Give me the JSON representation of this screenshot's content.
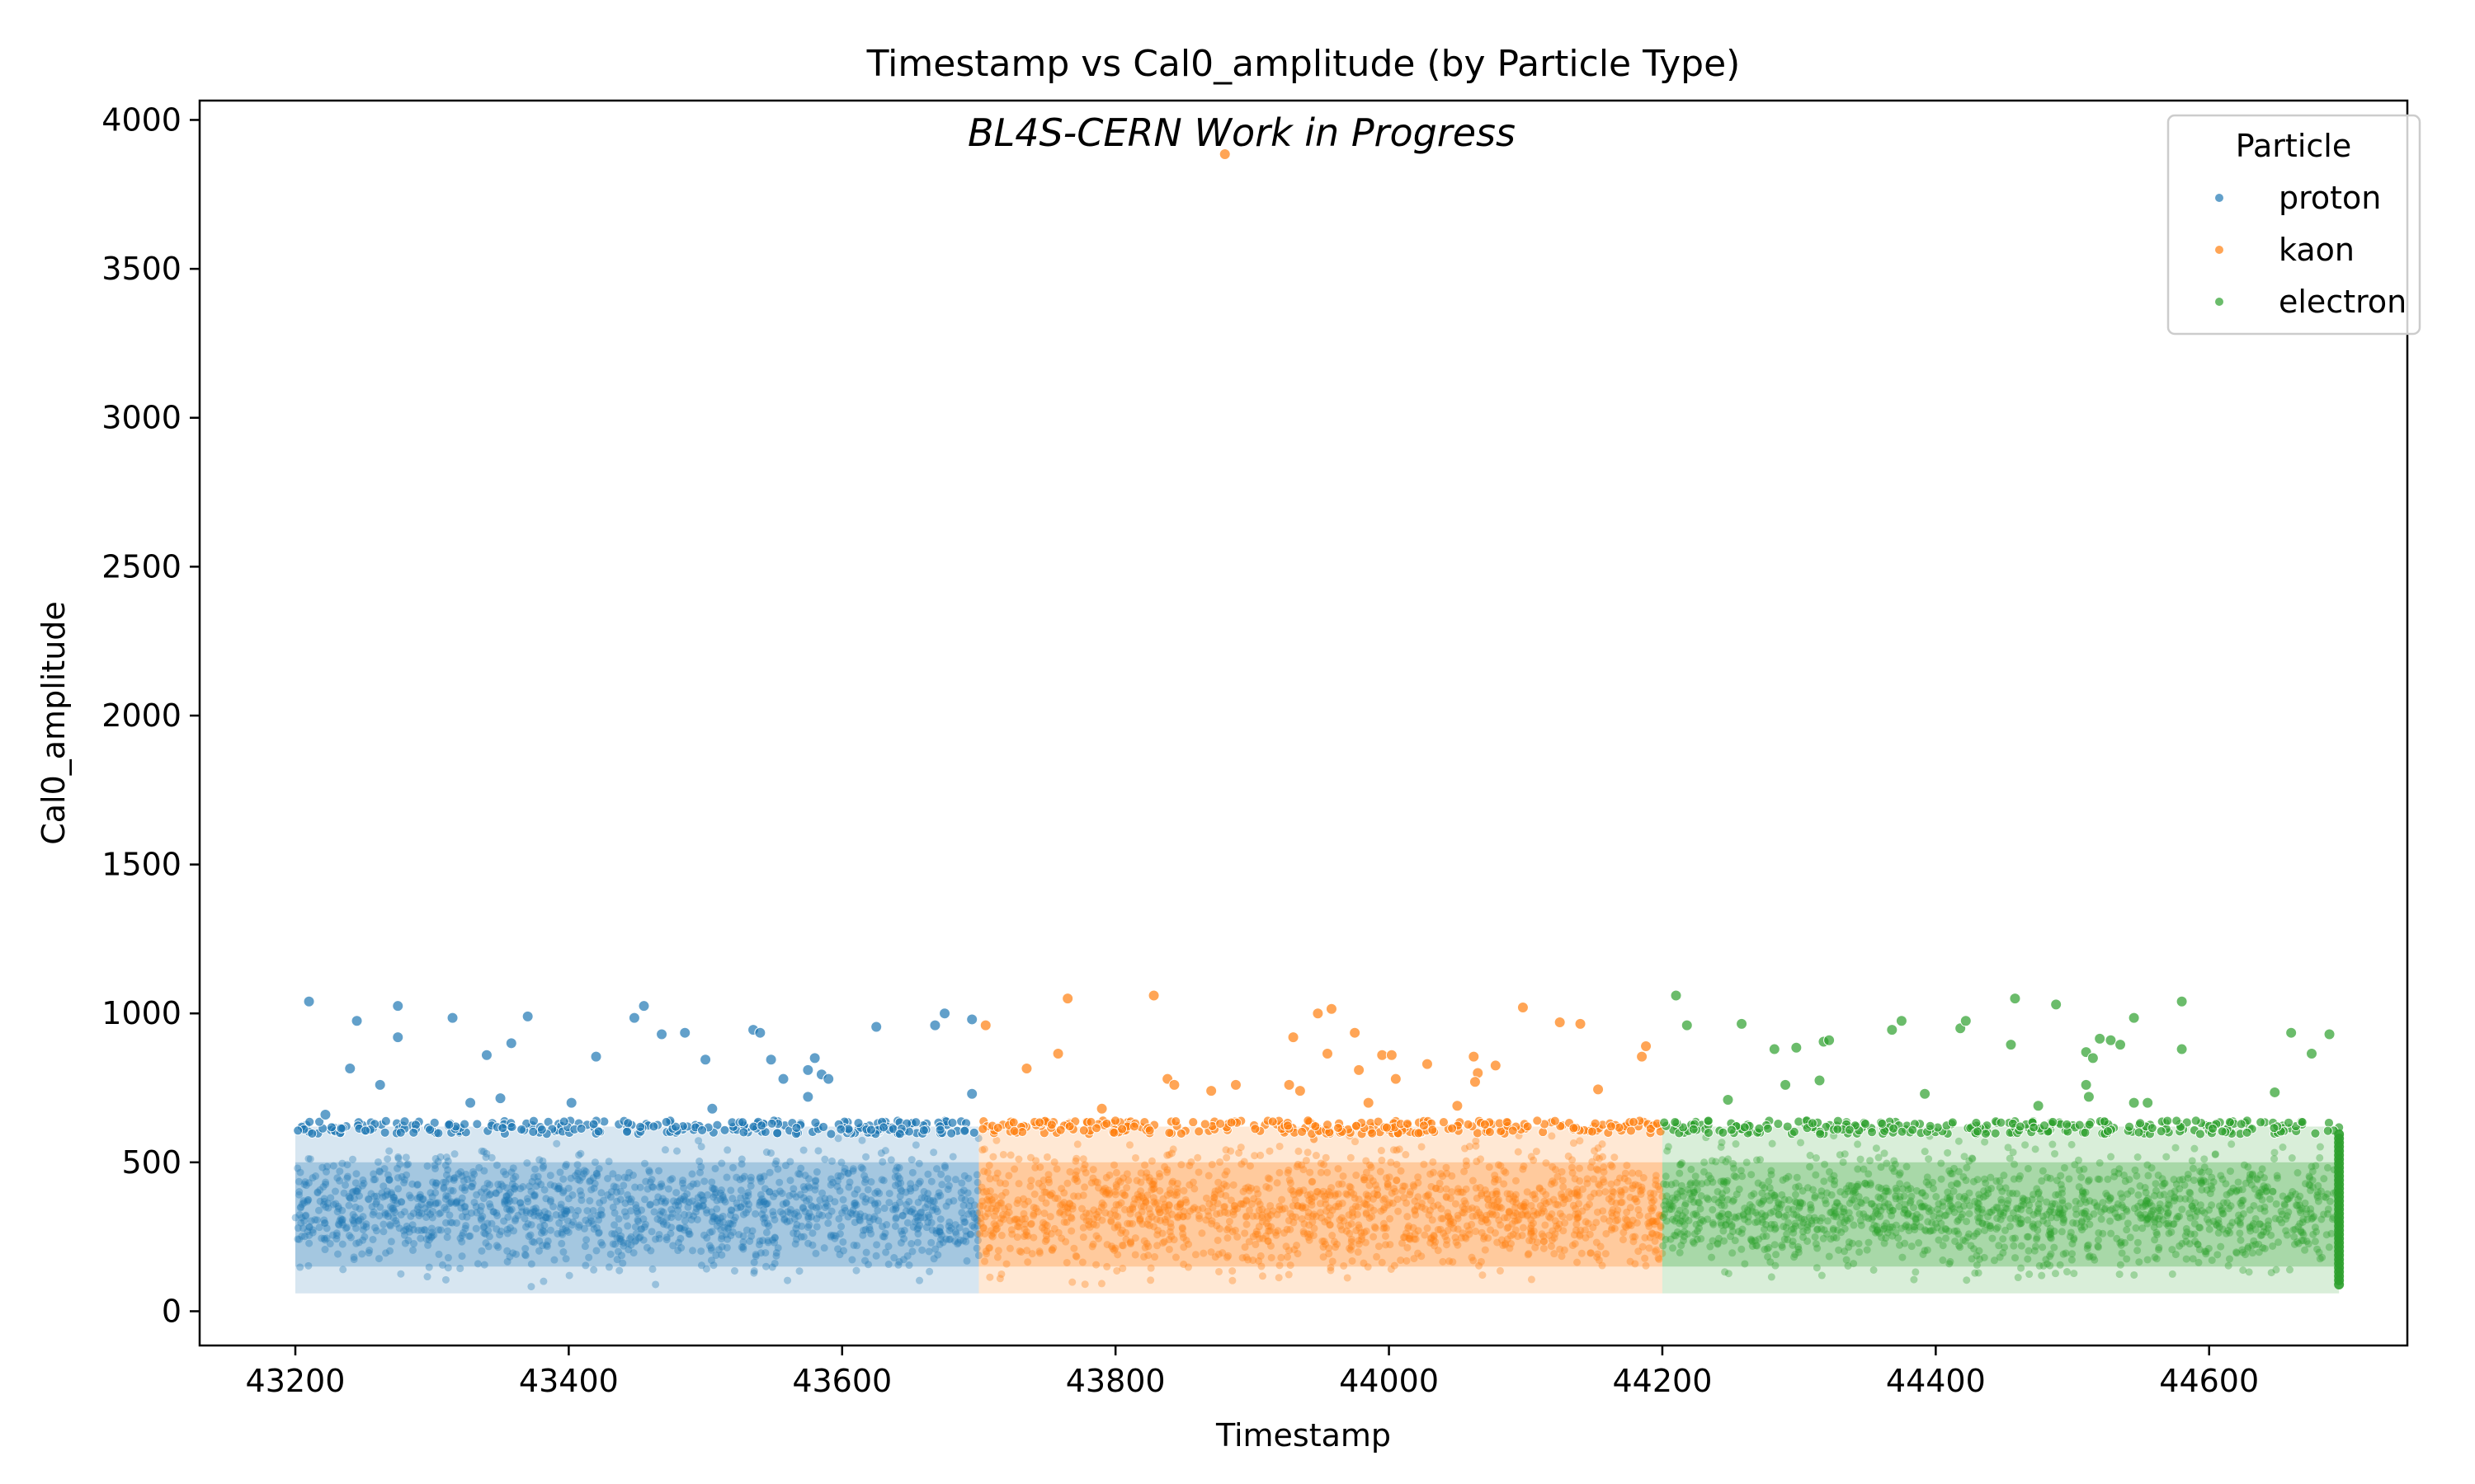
{
  "chart_data": {
    "type": "scatter",
    "title": "Timestamp vs Cal0_amplitude (by Particle Type)",
    "annotation": "BL4S-CERN Work in Progress",
    "xlabel": "Timestamp",
    "ylabel": "Cal0_amplitude",
    "xlim": [
      43130,
      44745
    ],
    "ylim": [
      -115,
      4065
    ],
    "xticks": [
      43200,
      43400,
      43600,
      43800,
      44000,
      44200,
      44400,
      44600
    ],
    "yticks": [
      0,
      500,
      1000,
      1500,
      2000,
      2500,
      3000,
      3500,
      4000
    ],
    "grid": false,
    "legend": {
      "title": "Particle",
      "placement": "top-right",
      "entries": [
        "proton",
        "kaon",
        "electron"
      ]
    },
    "series": [
      {
        "name": "proton",
        "color": "#1f77b4",
        "x_range": [
          43200,
          43700
        ],
        "band": [
          60,
          620
        ],
        "core": [
          150,
          500
        ],
        "outliers": [
          {
            "x": 43210,
            "y": 1040
          },
          {
            "x": 43245,
            "y": 975
          },
          {
            "x": 43275,
            "y": 1025
          },
          {
            "x": 43275,
            "y": 920
          },
          {
            "x": 43315,
            "y": 985
          },
          {
            "x": 43340,
            "y": 860
          },
          {
            "x": 43358,
            "y": 900
          },
          {
            "x": 43370,
            "y": 990
          },
          {
            "x": 43240,
            "y": 815
          },
          {
            "x": 43262,
            "y": 760
          },
          {
            "x": 43420,
            "y": 855
          },
          {
            "x": 43448,
            "y": 985
          },
          {
            "x": 43455,
            "y": 1025
          },
          {
            "x": 43468,
            "y": 930
          },
          {
            "x": 43485,
            "y": 935
          },
          {
            "x": 43500,
            "y": 845
          },
          {
            "x": 43535,
            "y": 945
          },
          {
            "x": 43540,
            "y": 935
          },
          {
            "x": 43548,
            "y": 845
          },
          {
            "x": 43557,
            "y": 780
          },
          {
            "x": 43575,
            "y": 810
          },
          {
            "x": 43580,
            "y": 850
          },
          {
            "x": 43585,
            "y": 795
          },
          {
            "x": 43590,
            "y": 780
          },
          {
            "x": 43575,
            "y": 720
          },
          {
            "x": 43625,
            "y": 955
          },
          {
            "x": 43668,
            "y": 960
          },
          {
            "x": 43675,
            "y": 1000
          },
          {
            "x": 43695,
            "y": 980
          },
          {
            "x": 43695,
            "y": 730
          },
          {
            "x": 43328,
            "y": 700
          },
          {
            "x": 43350,
            "y": 715
          },
          {
            "x": 43402,
            "y": 700
          },
          {
            "x": 43505,
            "y": 680
          },
          {
            "x": 43222,
            "y": 660
          }
        ]
      },
      {
        "name": "kaon",
        "color": "#ff7f0e",
        "x_range": [
          43700,
          44200
        ],
        "band": [
          60,
          620
        ],
        "core": [
          150,
          500
        ],
        "outliers": [
          {
            "x": 43880,
            "y": 3885
          },
          {
            "x": 43705,
            "y": 960
          },
          {
            "x": 43765,
            "y": 1050
          },
          {
            "x": 43828,
            "y": 1060
          },
          {
            "x": 43758,
            "y": 865
          },
          {
            "x": 43735,
            "y": 815
          },
          {
            "x": 43838,
            "y": 780
          },
          {
            "x": 43843,
            "y": 760
          },
          {
            "x": 43870,
            "y": 740
          },
          {
            "x": 43888,
            "y": 760
          },
          {
            "x": 43927,
            "y": 760
          },
          {
            "x": 43930,
            "y": 920
          },
          {
            "x": 43948,
            "y": 1000
          },
          {
            "x": 43958,
            "y": 1015
          },
          {
            "x": 43955,
            "y": 865
          },
          {
            "x": 43975,
            "y": 935
          },
          {
            "x": 43978,
            "y": 810
          },
          {
            "x": 43995,
            "y": 860
          },
          {
            "x": 44002,
            "y": 860
          },
          {
            "x": 44005,
            "y": 780
          },
          {
            "x": 44028,
            "y": 830
          },
          {
            "x": 44062,
            "y": 855
          },
          {
            "x": 44065,
            "y": 800
          },
          {
            "x": 44063,
            "y": 770
          },
          {
            "x": 44078,
            "y": 825
          },
          {
            "x": 44098,
            "y": 1020
          },
          {
            "x": 44125,
            "y": 970
          },
          {
            "x": 44140,
            "y": 965
          },
          {
            "x": 44153,
            "y": 745
          },
          {
            "x": 44188,
            "y": 890
          },
          {
            "x": 44185,
            "y": 855
          },
          {
            "x": 43935,
            "y": 740
          },
          {
            "x": 43985,
            "y": 700
          },
          {
            "x": 44050,
            "y": 690
          },
          {
            "x": 43790,
            "y": 680
          }
        ]
      },
      {
        "name": "electron",
        "color": "#2ca02c",
        "x_range": [
          44200,
          44695
        ],
        "band": [
          60,
          620
        ],
        "core": [
          150,
          500
        ],
        "outliers": [
          {
            "x": 44210,
            "y": 1060
          },
          {
            "x": 44218,
            "y": 960
          },
          {
            "x": 44258,
            "y": 965
          },
          {
            "x": 44282,
            "y": 880
          },
          {
            "x": 44298,
            "y": 885
          },
          {
            "x": 44290,
            "y": 760
          },
          {
            "x": 44315,
            "y": 775
          },
          {
            "x": 44318,
            "y": 905
          },
          {
            "x": 44322,
            "y": 910
          },
          {
            "x": 44368,
            "y": 945
          },
          {
            "x": 44375,
            "y": 975
          },
          {
            "x": 44392,
            "y": 730
          },
          {
            "x": 44418,
            "y": 950
          },
          {
            "x": 44422,
            "y": 975
          },
          {
            "x": 44458,
            "y": 1050
          },
          {
            "x": 44455,
            "y": 895
          },
          {
            "x": 44488,
            "y": 1030
          },
          {
            "x": 44510,
            "y": 870
          },
          {
            "x": 44515,
            "y": 850
          },
          {
            "x": 44520,
            "y": 915
          },
          {
            "x": 44528,
            "y": 910
          },
          {
            "x": 44535,
            "y": 895
          },
          {
            "x": 44545,
            "y": 985
          },
          {
            "x": 44580,
            "y": 1040
          },
          {
            "x": 44580,
            "y": 880
          },
          {
            "x": 44510,
            "y": 760
          },
          {
            "x": 44512,
            "y": 720
          },
          {
            "x": 44545,
            "y": 700
          },
          {
            "x": 44555,
            "y": 700
          },
          {
            "x": 44648,
            "y": 735
          },
          {
            "x": 44660,
            "y": 935
          },
          {
            "x": 44675,
            "y": 865
          },
          {
            "x": 44688,
            "y": 930
          },
          {
            "x": 44248,
            "y": 710
          },
          {
            "x": 44475,
            "y": 690
          }
        ]
      }
    ]
  }
}
